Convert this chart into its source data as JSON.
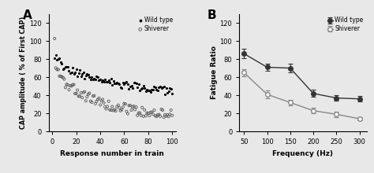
{
  "panel_A": {
    "title": "A",
    "xlabel": "Response number in train",
    "ylabel": "CAP amplitude ( % of First CAP)",
    "xlim": [
      -3,
      103
    ],
    "ylim": [
      0,
      130
    ],
    "yticks": [
      0,
      20,
      40,
      60,
      80,
      100,
      120
    ],
    "xticks": [
      0,
      20,
      40,
      60,
      80,
      100
    ],
    "wt_base_x": [
      2,
      3,
      4,
      5,
      6,
      7,
      8,
      9,
      10,
      11,
      12,
      13,
      14,
      15,
      16,
      17,
      18,
      19,
      20,
      21,
      22,
      23,
      24,
      25,
      26,
      27,
      28,
      29,
      30,
      31,
      32,
      33,
      34,
      35,
      36,
      37,
      38,
      39,
      40,
      41,
      42,
      43,
      44,
      45,
      46,
      47,
      48,
      49,
      50,
      51,
      52,
      53,
      54,
      55,
      56,
      57,
      58,
      59,
      60,
      61,
      62,
      63,
      64,
      65,
      66,
      67,
      68,
      69,
      70,
      71,
      72,
      73,
      74,
      75,
      76,
      77,
      78,
      79,
      80,
      81,
      82,
      83,
      84,
      85,
      86,
      87,
      88,
      89,
      90,
      91,
      92,
      93,
      94,
      95,
      96,
      97,
      98,
      99,
      100
    ],
    "wt_base_y": [
      85,
      82,
      80,
      78,
      77,
      76,
      75,
      73,
      72,
      71,
      70,
      69,
      68,
      68,
      67,
      67,
      66,
      66,
      65,
      65,
      64,
      64,
      63,
      63,
      62,
      62,
      62,
      61,
      61,
      60,
      60,
      60,
      59,
      59,
      59,
      58,
      58,
      58,
      57,
      57,
      57,
      56,
      56,
      56,
      55,
      55,
      55,
      55,
      54,
      54,
      54,
      54,
      53,
      53,
      53,
      53,
      52,
      52,
      52,
      52,
      51,
      51,
      51,
      51,
      50,
      50,
      50,
      50,
      50,
      49,
      49,
      49,
      49,
      48,
      48,
      48,
      48,
      48,
      47,
      47,
      47,
      47,
      47,
      47,
      46,
      46,
      46,
      46,
      46,
      46,
      46,
      46,
      45,
      45,
      45,
      45,
      45,
      45,
      45
    ],
    "shiv_base_x": [
      2,
      3,
      4,
      5,
      6,
      7,
      8,
      9,
      10,
      11,
      12,
      13,
      14,
      15,
      16,
      17,
      18,
      19,
      20,
      21,
      22,
      23,
      24,
      25,
      26,
      27,
      28,
      29,
      30,
      31,
      32,
      33,
      34,
      35,
      36,
      37,
      38,
      39,
      40,
      41,
      42,
      43,
      44,
      45,
      46,
      47,
      48,
      49,
      50,
      51,
      52,
      53,
      54,
      55,
      56,
      57,
      58,
      59,
      60,
      61,
      62,
      63,
      64,
      65,
      66,
      67,
      68,
      69,
      70,
      71,
      72,
      73,
      74,
      75,
      76,
      77,
      78,
      79,
      80,
      81,
      82,
      83,
      84,
      85,
      86,
      87,
      88,
      89,
      90,
      91,
      92,
      93,
      94,
      95,
      96,
      97,
      98,
      99,
      100
    ],
    "shiv_base_y": [
      101,
      75,
      70,
      65,
      62,
      60,
      58,
      56,
      55,
      54,
      53,
      52,
      51,
      50,
      49,
      48,
      47,
      46,
      45,
      44,
      43,
      42,
      42,
      41,
      40,
      40,
      39,
      38,
      38,
      37,
      36,
      36,
      35,
      35,
      34,
      34,
      33,
      33,
      33,
      32,
      32,
      31,
      31,
      30,
      30,
      30,
      29,
      29,
      29,
      28,
      28,
      28,
      27,
      27,
      27,
      27,
      26,
      26,
      26,
      25,
      25,
      25,
      25,
      24,
      24,
      24,
      24,
      23,
      23,
      23,
      23,
      23,
      22,
      22,
      22,
      22,
      22,
      22,
      21,
      21,
      21,
      21,
      21,
      21,
      21,
      20,
      20,
      20,
      20,
      20,
      20,
      20,
      20,
      20,
      19,
      19,
      19,
      19,
      19
    ],
    "legend_wt": "Wild type",
    "legend_shiv": "Shiverer",
    "wt_noise_scale": 4.5,
    "shiv_noise_scale": 5.5
  },
  "panel_B": {
    "title": "B",
    "xlabel": "Frequency (Hz)",
    "ylabel": "Fatigue Ratio",
    "xlim": [
      40,
      315
    ],
    "ylim": [
      0,
      130
    ],
    "yticks": [
      0,
      20,
      40,
      60,
      80,
      100,
      120
    ],
    "xticks": [
      50,
      100,
      150,
      200,
      250,
      300
    ],
    "wt_x": [
      50,
      100,
      150,
      200,
      250,
      300
    ],
    "wt_y": [
      86,
      71,
      70,
      42,
      37,
      36
    ],
    "wt_yerr": [
      5,
      4,
      5,
      4,
      3,
      3
    ],
    "shiv_x": [
      50,
      100,
      150,
      200,
      250,
      300
    ],
    "shiv_y": [
      65,
      41,
      32,
      23,
      19,
      14
    ],
    "shiv_yerr": [
      4,
      4,
      3,
      3,
      3,
      2
    ],
    "legend_wt": "Wild type",
    "legend_shiv": "Shiverer"
  },
  "bg_color": "#e8e8e8",
  "fig_width": 4.74,
  "fig_height": 2.2
}
